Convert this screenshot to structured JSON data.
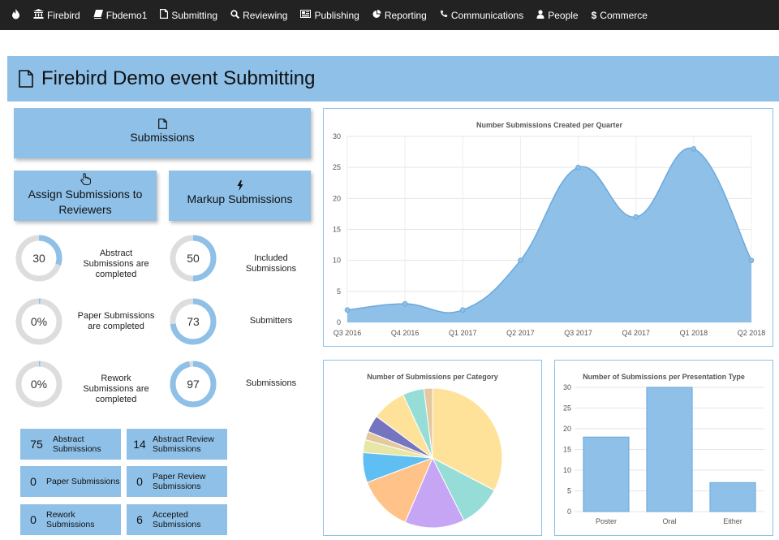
{
  "navbar": {
    "items": [
      {
        "icon": "building-icon",
        "label": "Firebird"
      },
      {
        "icon": "book-icon",
        "label": "Fbdemo1"
      },
      {
        "icon": "file-icon",
        "label": "Submitting"
      },
      {
        "icon": "search-icon",
        "label": "Reviewing"
      },
      {
        "icon": "newspaper-icon",
        "label": "Publishing"
      },
      {
        "icon": "pie-chart-icon",
        "label": "Reporting"
      },
      {
        "icon": "phone-icon",
        "label": "Communications"
      },
      {
        "icon": "user-icon",
        "label": "People"
      },
      {
        "icon": "dollar-icon",
        "label": "Commerce"
      }
    ]
  },
  "page": {
    "title": "Firebird Demo event Submitting"
  },
  "actions": {
    "submissions": "Submissions",
    "assign": "Assign Submissions to Reviewers",
    "markup": "Markup Submissions"
  },
  "donuts": [
    {
      "value": "30",
      "fraction": 0.3,
      "label": "Abstract Submissions are completed"
    },
    {
      "value": "50",
      "fraction": 0.5,
      "label": "Included Submissions"
    },
    {
      "value": "0%",
      "fraction": 0.0,
      "label": "Paper Submissions are completed"
    },
    {
      "value": "73",
      "fraction": 0.73,
      "label": "Submitters"
    },
    {
      "value": "0%",
      "fraction": 0.0,
      "label": "Rework Submissions are completed"
    },
    {
      "value": "97",
      "fraction": 0.97,
      "label": "Submissions"
    }
  ],
  "tiles": [
    {
      "value": "75",
      "label": "Abstract Submissions"
    },
    {
      "value": "14",
      "label": "Abstract Review Submissions"
    },
    {
      "value": "0",
      "label": "Paper Submissions"
    },
    {
      "value": "0",
      "label": "Paper Review Submissions"
    },
    {
      "value": "0",
      "label": "Rework Submissions"
    },
    {
      "value": "6",
      "label": "Accepted Submissions"
    }
  ],
  "colors": {
    "accent": "#8ec0e8",
    "navbar": "#222222",
    "donut_track": "#dddddd"
  },
  "chart_data": [
    {
      "type": "area",
      "title": "Number Submissions Created per Quarter",
      "categories": [
        "Q3 2016",
        "Q4 2016",
        "Q1 2017",
        "Q2 2017",
        "Q3 2017",
        "Q4 2017",
        "Q1 2018",
        "Q2 2018"
      ],
      "values": [
        2,
        3,
        2,
        10,
        25,
        17,
        28,
        10
      ],
      "ylim": [
        0,
        30
      ],
      "yticks": [
        0,
        5,
        10,
        15,
        20,
        25,
        30
      ],
      "grid": true
    },
    {
      "type": "pie",
      "title": "Number of Submissions per Category",
      "values": [
        33,
        10,
        14,
        13,
        7,
        3,
        2,
        4,
        8,
        5,
        2
      ],
      "colors": [
        "#ffe29a",
        "#96dcd7",
        "#c7a5f5",
        "#ffc38a",
        "#5fbff2",
        "#e6e6a6",
        "#e4c8a0",
        "#7474c0",
        "#ffe29a",
        "#96dcd7",
        "#e4c8a0"
      ]
    },
    {
      "type": "bar",
      "title": "Number of Submissions per Presentation Type",
      "categories": [
        "Poster",
        "Oral",
        "Either"
      ],
      "values": [
        18,
        30,
        7
      ],
      "ylim": [
        0,
        30
      ],
      "yticks": [
        0,
        5,
        10,
        15,
        20,
        25,
        30
      ],
      "grid": true
    }
  ]
}
